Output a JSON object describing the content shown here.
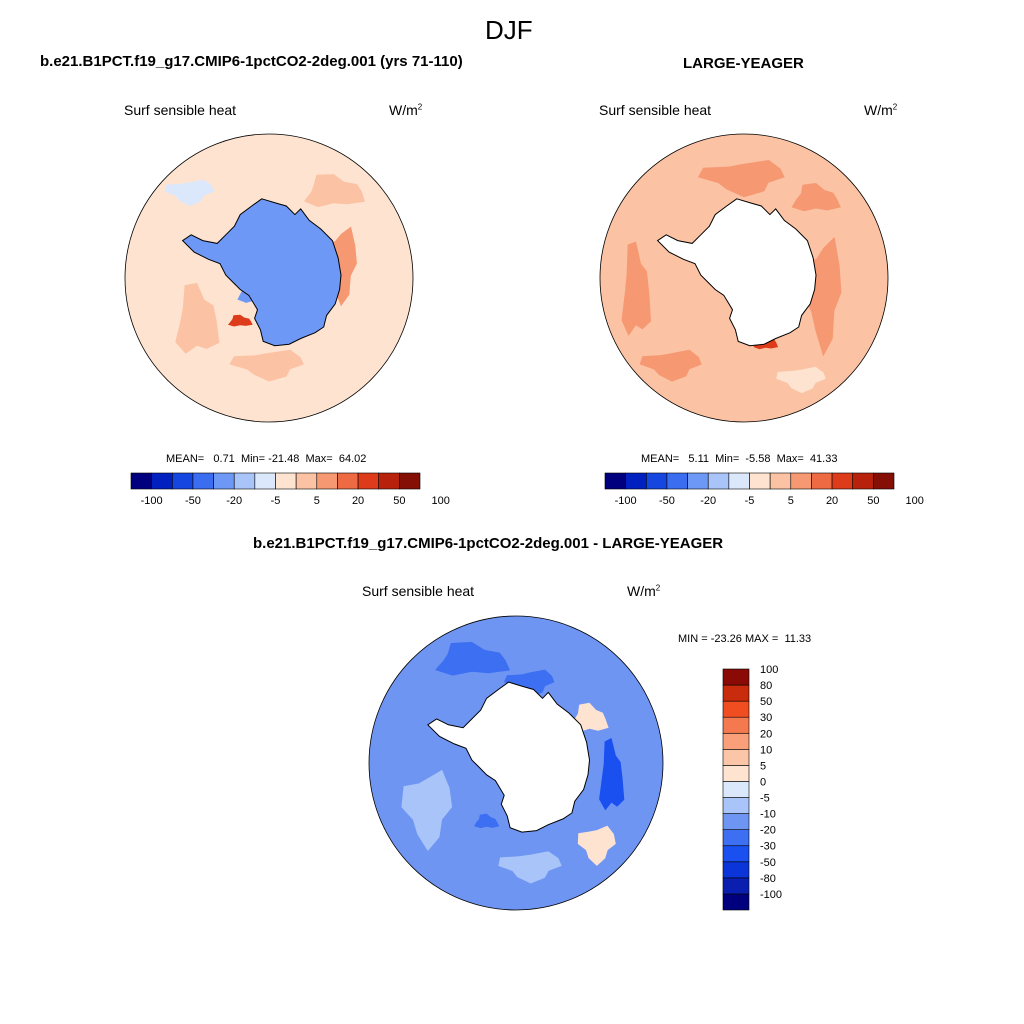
{
  "figure": {
    "title": "DJF"
  },
  "chart_data": [
    {
      "type": "heatmap",
      "projection": "south-polar-stereographic",
      "case_title": "b.e21.B1PCT.f19_g17.CMIP6-1pctCO2-2deg.001 (yrs 71-110)",
      "variable": "Surf sensible heat",
      "units_base": "W/m",
      "units_exp": "2",
      "stats": {
        "mean_label": "MEAN=",
        "mean": "0.71",
        "min_label": "Min=",
        "min": "-21.48",
        "max_label": "Max=",
        "max": "64.02"
      },
      "colorbar_orientation": "horizontal",
      "levels": [
        -100,
        -50,
        -20,
        -5,
        5,
        20,
        50,
        100
      ],
      "tick_labels": [
        "-100",
        "-50",
        "-20",
        "-5",
        "5",
        "20",
        "50",
        "100"
      ],
      "colors": [
        "#00007f",
        "#0020c0",
        "#1646e0",
        "#3b6df0",
        "#6e98f5",
        "#a8c4f8",
        "#dbe8fb",
        "#fde3d0",
        "#fbc2a4",
        "#f69871",
        "#ee6a43",
        "#dd3b1a",
        "#b8220c",
        "#850e05"
      ],
      "ocean_class": 7,
      "continent_fill": "field",
      "continent_class": 4
    },
    {
      "type": "heatmap",
      "projection": "south-polar-stereographic",
      "case_title": "LARGE-YEAGER",
      "variable": "Surf sensible heat",
      "units_base": "W/m",
      "units_exp": "2",
      "stats": {
        "mean_label": "MEAN=",
        "mean": "5.11",
        "min_label": "Min=",
        "min": "-5.58",
        "max_label": "Max=",
        "max": "41.33"
      },
      "colorbar_orientation": "horizontal",
      "levels": [
        -100,
        -50,
        -20,
        -5,
        5,
        20,
        50,
        100
      ],
      "tick_labels": [
        "-100",
        "-50",
        "-20",
        "-5",
        "5",
        "20",
        "50",
        "100"
      ],
      "colors": [
        "#00007f",
        "#0020c0",
        "#1646e0",
        "#3b6df0",
        "#6e98f5",
        "#a8c4f8",
        "#dbe8fb",
        "#fde3d0",
        "#fbc2a4",
        "#f69871",
        "#ee6a43",
        "#dd3b1a",
        "#b8220c",
        "#850e05"
      ],
      "ocean_class": 8,
      "continent_fill": "white"
    },
    {
      "type": "heatmap",
      "projection": "south-polar-stereographic",
      "case_title": "b.e21.B1PCT.f19_g17.CMIP6-1pctCO2-2deg.001 - LARGE-YEAGER",
      "variable": "Surf sensible heat",
      "units_base": "W/m",
      "units_exp": "2",
      "stats": {
        "min_label": "MIN =",
        "min": "-23.26",
        "max_label": "MAX =",
        "max": "11.33"
      },
      "colorbar_orientation": "vertical",
      "levels": [
        -100,
        -80,
        -50,
        -30,
        -20,
        -10,
        -5,
        0,
        5,
        10,
        20,
        30,
        50,
        80,
        100
      ],
      "tick_labels": [
        "-100",
        "-80",
        "-50",
        "-30",
        "-20",
        "-10",
        "-5",
        "0",
        "5",
        "10",
        "20",
        "30",
        "50",
        "80",
        "100"
      ],
      "colors": [
        "#00007f",
        "#0a1fb0",
        "#0b35d8",
        "#1a4ff0",
        "#3d6ff2",
        "#6f95f3",
        "#a8c4f8",
        "#dbe8fb",
        "#fde3d0",
        "#fbc5a8",
        "#f9a07a",
        "#f5794f",
        "#f04d20",
        "#c82c0c",
        "#8a0a05"
      ],
      "ocean_class": 5,
      "continent_fill": "white"
    }
  ]
}
